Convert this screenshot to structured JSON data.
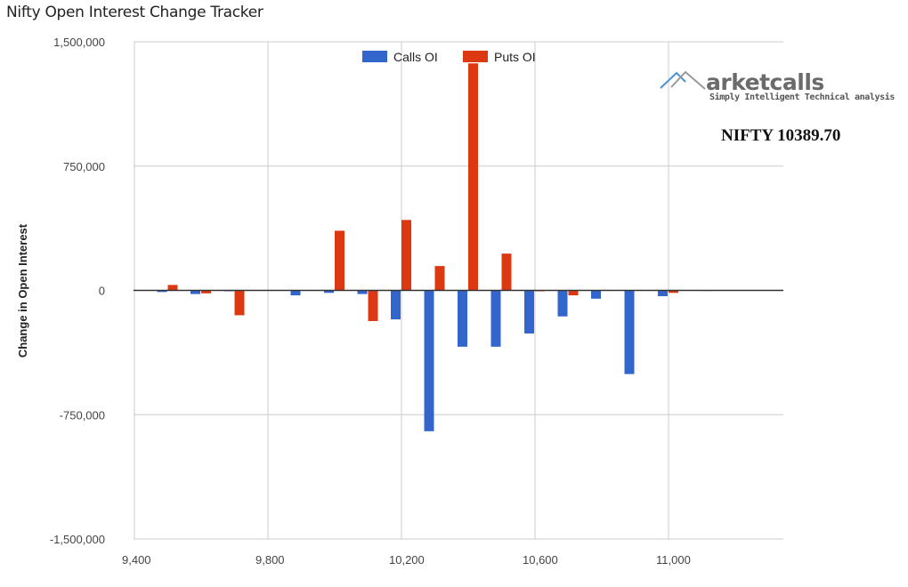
{
  "title": "Nifty Open Interest Change Tracker",
  "logo": {
    "word": "arketcalls",
    "tagline": "Simply Intelligent Technical analysis"
  },
  "annotation": "NIFTY 10389.70",
  "colors": {
    "calls": "#3366cc",
    "puts": "#dc3912",
    "grid": "#cccccc",
    "zero": "#333333"
  },
  "chart_data": {
    "type": "bar",
    "title": "Nifty Open Interest Change Tracker",
    "xlabel": "",
    "ylabel": "Change in Open Interest",
    "ylim": [
      -1500000,
      1500000
    ],
    "yticks": [
      1500000,
      750000,
      0,
      -750000,
      -1500000
    ],
    "ytick_labels": [
      "1,500,000",
      "750,000",
      "0",
      "-750,000",
      "-1,500,000"
    ],
    "xlim": [
      9400,
      11350
    ],
    "xticks": [
      9400,
      9800,
      10200,
      10600,
      11000
    ],
    "xtick_labels": [
      "9,400",
      "9,800",
      "10,200",
      "10,600",
      "11,000"
    ],
    "grid": true,
    "legend_position": "top",
    "categories": [
      9500,
      9600,
      9700,
      9800,
      9900,
      10000,
      10100,
      10200,
      10300,
      10400,
      10500,
      10600,
      10700,
      10800,
      10900,
      11000,
      11100
    ],
    "series": [
      {
        "name": "Calls OI",
        "values": [
          -10000,
          -22000,
          -3000,
          0,
          -30000,
          -15000,
          -22000,
          -175000,
          -850000,
          -340000,
          -340000,
          -260000,
          -157000,
          -50000,
          -505000,
          -35000,
          0
        ]
      },
      {
        "name": "Puts OI",
        "values": [
          33000,
          -18000,
          -150000,
          0,
          0,
          360000,
          -185000,
          425000,
          147000,
          1370000,
          222000,
          -3000,
          -30000,
          3000,
          0,
          -15000,
          2000
        ]
      }
    ],
    "annotations": [
      "NIFTY 10389.70"
    ]
  }
}
